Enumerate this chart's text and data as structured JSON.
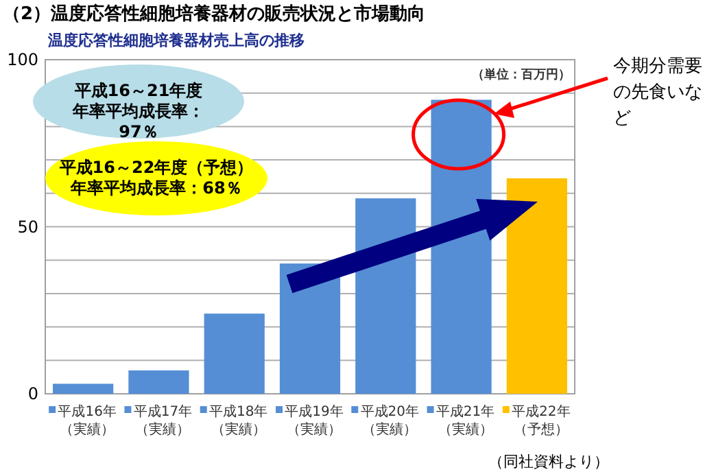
{
  "chart_data": {
    "type": "bar",
    "title": "（2）温度応答性細胞培養器材の販売状況と市場動向",
    "subtitle": "温度応答性細胞培養器材売上高の推移",
    "categories": [
      "平成16年（実績）",
      "平成17年（実績）",
      "平成18年（実績）",
      "平成19年（実績）",
      "平成20年（実績）",
      "平成21年（実績）",
      "平成22年（予想）"
    ],
    "values": [
      3,
      7,
      24,
      39,
      58.5,
      88,
      64.5
    ],
    "colors": [
      "#558ed5",
      "#558ed5",
      "#558ed5",
      "#558ed5",
      "#558ed5",
      "#558ed5",
      "#ffc000"
    ],
    "ylim": [
      0,
      100
    ],
    "yticks": [
      0,
      {
        "value": 10,
        "label": null
      },
      {
        "value": 20,
        "label": null
      },
      {
        "value": 30,
        "label": null
      },
      {
        "value": 40,
        "label": null
      },
      50,
      {
        "value": 60,
        "label": null
      },
      {
        "value": 70,
        "label": null
      },
      {
        "value": 80,
        "label": null
      },
      {
        "value": 90,
        "label": null
      },
      100
    ],
    "grid": "y",
    "annotations": [
      "（単位：百万円）",
      "平成16～21年度年率平均成長率：97％",
      "平成16～22年度（予想）年率平均成長率：68％",
      "今期分需要の先食いなど",
      "（同社資料より）"
    ]
  }
}
